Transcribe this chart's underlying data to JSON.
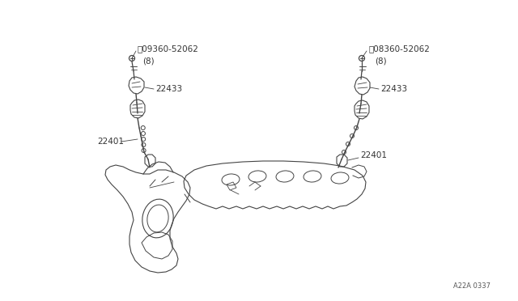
{
  "bg_color": "#ffffff",
  "line_color": "#444444",
  "text_color": "#333333",
  "part_code_bottom_right": "A22A 0337",
  "left_bolt_label1": "Ⓜ09360-52062",
  "left_bolt_label2": "（8）",
  "right_bolt_label1": "Ⓜ08360-52062",
  "right_bolt_label2": "（8）",
  "label_22433": "22433",
  "label_22401": "22401",
  "figsize": [
    6.4,
    3.72
  ],
  "dpi": 100
}
